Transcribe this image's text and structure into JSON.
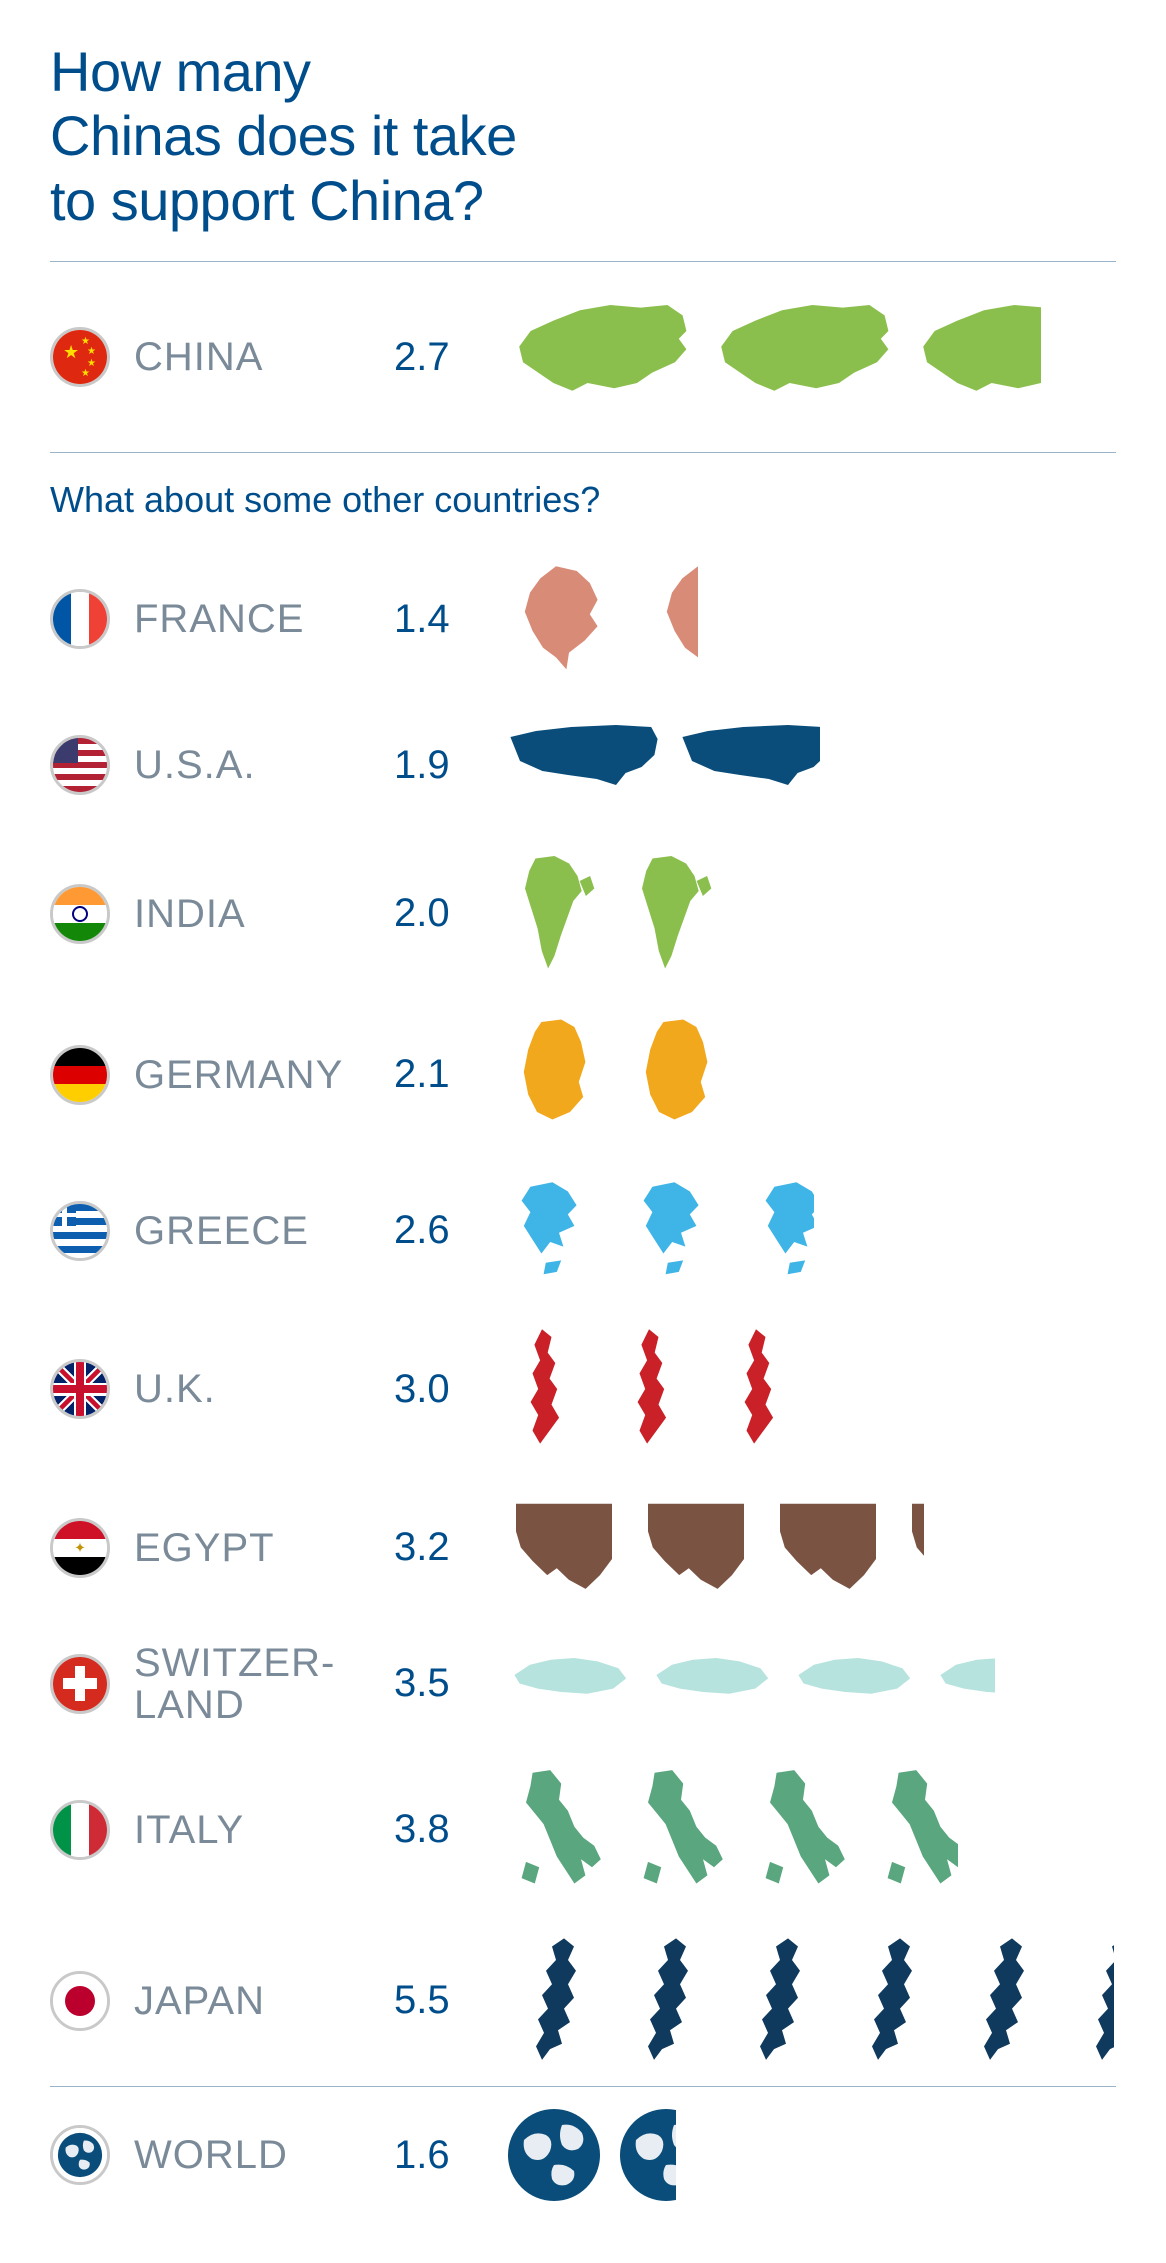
{
  "title_lines": [
    "How many",
    "Chinas does it take",
    "to support China?"
  ],
  "subhead": "What about some other countries?",
  "title_color": "#004d8c",
  "label_color": "#7a8a98",
  "value_color": "#004d8c",
  "divider_color": "#9bb4c9",
  "featured": {
    "name": "CHINA",
    "value": 2.7,
    "shape": "china",
    "shape_color": "#8bbf4d",
    "flag": "china",
    "unit_width": 190,
    "unit_height": 130
  },
  "countries": [
    {
      "name": "FRANCE",
      "value": 1.4,
      "shape": "france",
      "shape_color": "#d88c77",
      "flag": "france",
      "unit_width": 130,
      "unit_height": 120
    },
    {
      "name": "U.S.A.",
      "value": 1.9,
      "shape": "usa",
      "shape_color": "#0a4d7a",
      "flag": "usa",
      "unit_width": 160,
      "unit_height": 100
    },
    {
      "name": "INDIA",
      "value": 2.0,
      "shape": "india",
      "shape_color": "#8bbf4d",
      "flag": "india",
      "unit_width": 105,
      "unit_height": 125
    },
    {
      "name": "GERMANY",
      "value": 2.1,
      "shape": "germany",
      "shape_color": "#f2a81d",
      "flag": "germany",
      "unit_width": 110,
      "unit_height": 125
    },
    {
      "name": "GREECE",
      "value": 2.6,
      "shape": "greece",
      "shape_color": "#3fb4e6",
      "flag": "greece",
      "unit_width": 110,
      "unit_height": 115
    },
    {
      "name": "U.K.",
      "value": 3.0,
      "shape": "uk",
      "shape_color": "#c92127",
      "flag": "uk",
      "unit_width": 95,
      "unit_height": 130
    },
    {
      "name": "EGYPT",
      "value": 3.2,
      "shape": "egypt",
      "shape_color": "#7a5343",
      "flag": "egypt",
      "unit_width": 120,
      "unit_height": 115
    },
    {
      "name": "SWITZER-\nLAND",
      "value": 3.5,
      "shape": "swiss",
      "shape_color": "#b6e3de",
      "flag": "swiss",
      "unit_width": 130,
      "unit_height": 85
    },
    {
      "name": "ITALY",
      "value": 3.8,
      "shape": "italy",
      "shape_color": "#5aa67f",
      "flag": "italy",
      "unit_width": 110,
      "unit_height": 135
    },
    {
      "name": "JAPAN",
      "value": 5.5,
      "shape": "japan",
      "shape_color": "#103a5d",
      "flag": "japan",
      "unit_width": 100,
      "unit_height": 135
    }
  ],
  "world": {
    "name": "WORLD",
    "value": 1.6,
    "shape": "globe",
    "shape_color": "#0a4d7a",
    "flag": "globe",
    "unit_width": 100,
    "unit_height": 100
  }
}
